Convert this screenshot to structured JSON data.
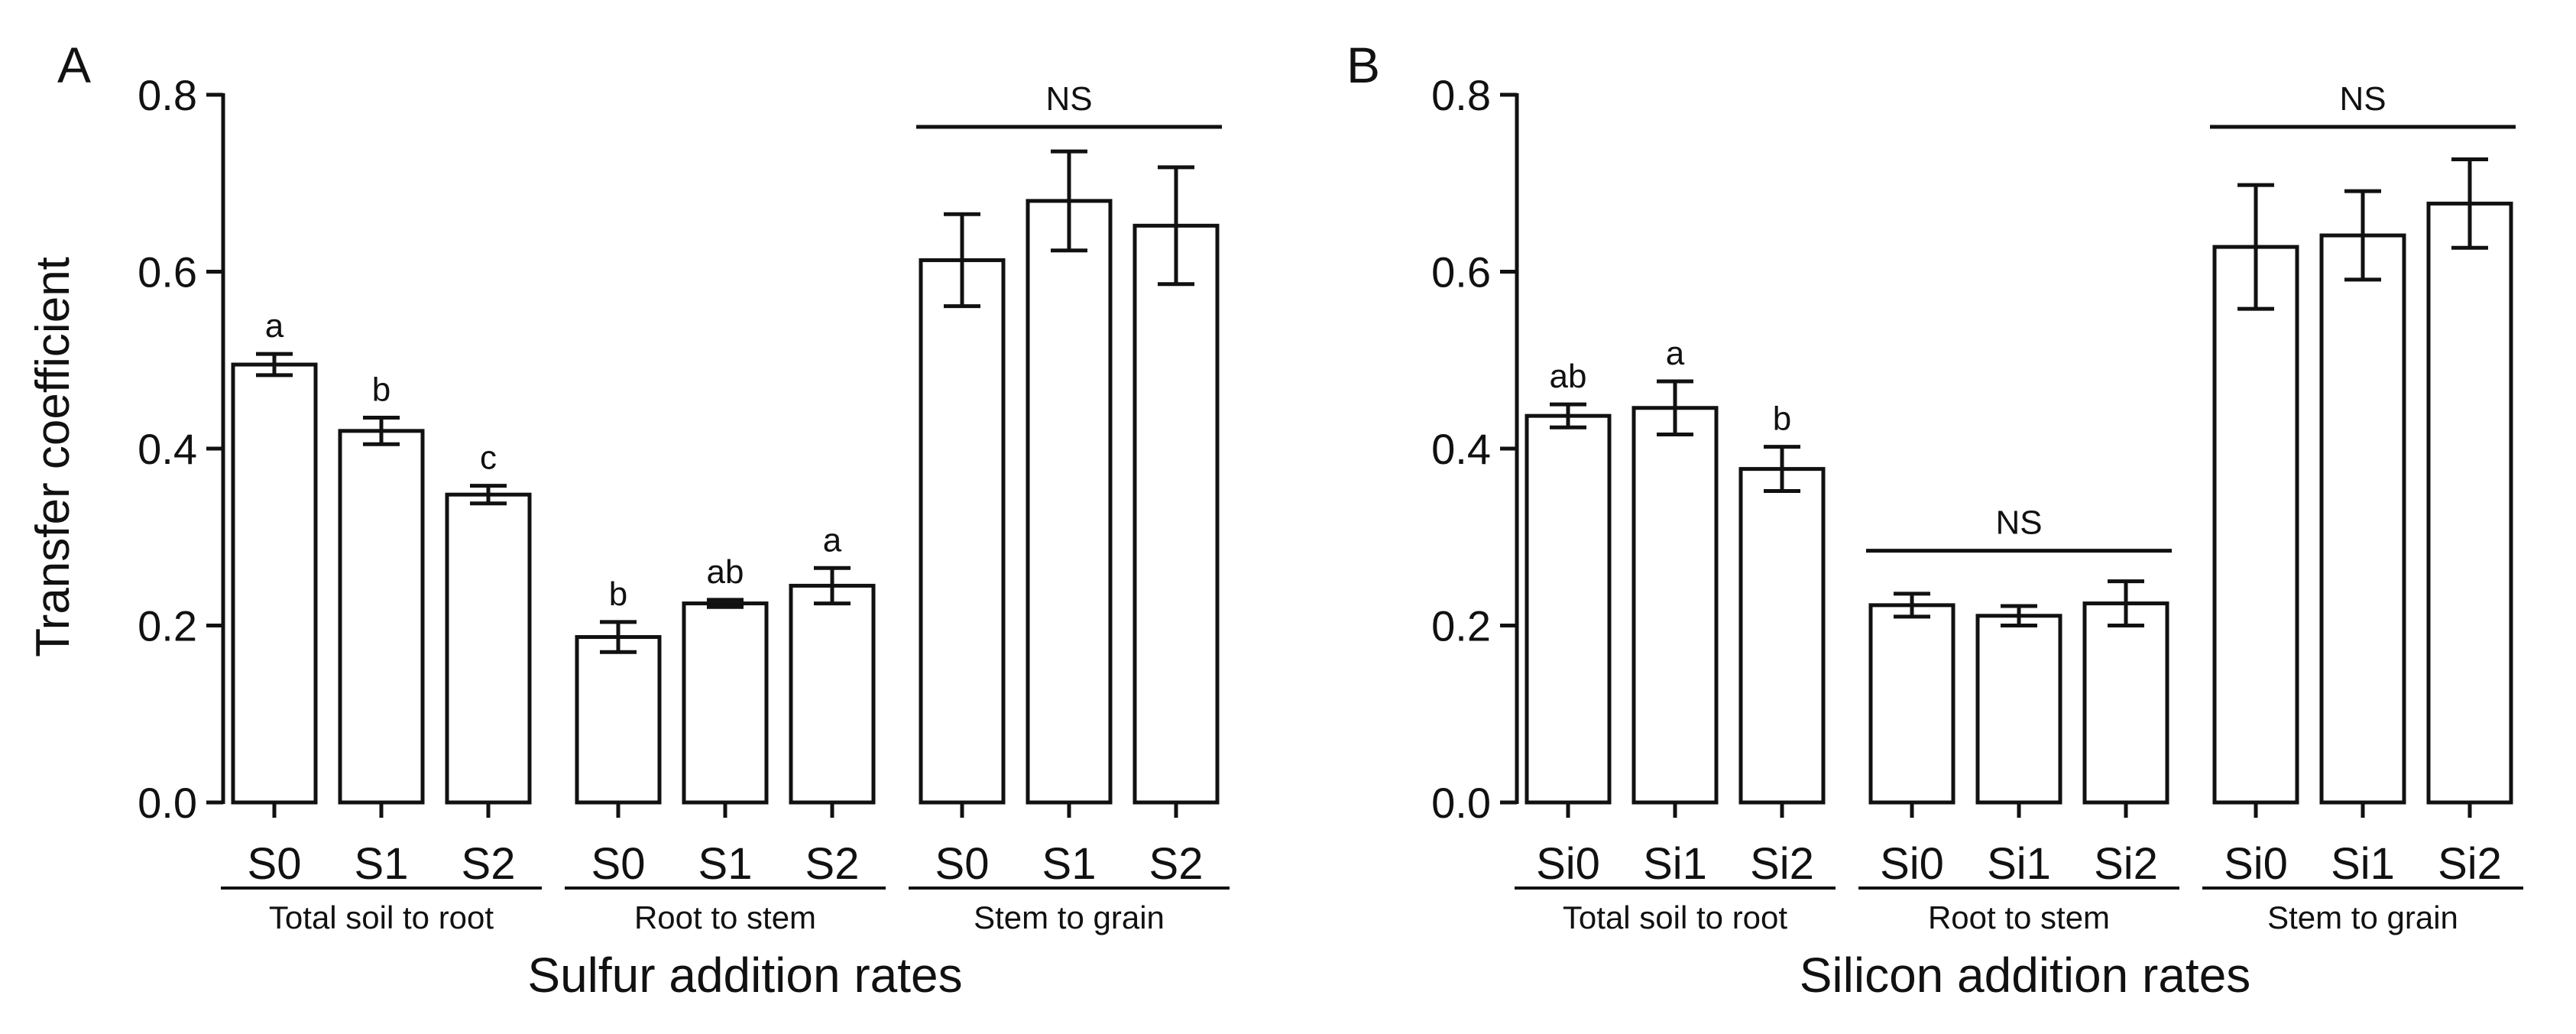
{
  "chart_data": [
    {
      "type": "bar",
      "panel_label": "A",
      "ylabel": "Transfer coefficient",
      "xlabel": "Sulfur addition rates",
      "ylim": [
        0,
        0.8
      ],
      "yticks": [
        0.0,
        0.2,
        0.4,
        0.6,
        0.8
      ],
      "ytick_labels": [
        "0.0",
        "0.2",
        "0.4",
        "0.6",
        "0.8"
      ],
      "groups": [
        {
          "label": "Total soil to root",
          "categories": [
            "S0",
            "S1",
            "S2"
          ],
          "values": [
            0.495,
            0.42,
            0.348
          ],
          "errors": [
            0.012,
            0.015,
            0.01
          ],
          "letters": [
            "a",
            "b",
            "c"
          ],
          "annotation": ""
        },
        {
          "label": "Root to stem",
          "categories": [
            "S0",
            "S1",
            "S2"
          ],
          "values": [
            0.187,
            0.225,
            0.245
          ],
          "errors": [
            0.017,
            0.004,
            0.02
          ],
          "letters": [
            "b",
            "ab",
            "a"
          ],
          "annotation": ""
        },
        {
          "label": "Stem to grain",
          "categories": [
            "S0",
            "S1",
            "S2"
          ],
          "values": [
            0.613,
            0.68,
            0.652
          ],
          "errors": [
            0.052,
            0.056,
            0.066
          ],
          "letters": [
            "",
            "",
            ""
          ],
          "annotation": "NS"
        }
      ]
    },
    {
      "type": "bar",
      "panel_label": "B",
      "ylabel": "",
      "xlabel": "Silicon addition rates",
      "ylim": [
        0,
        0.8
      ],
      "yticks": [
        0.0,
        0.2,
        0.4,
        0.6,
        0.8
      ],
      "ytick_labels": [
        "0.0",
        "0.2",
        "0.4",
        "0.6",
        "0.8"
      ],
      "groups": [
        {
          "label": "Total soil to root",
          "categories": [
            "Si0",
            "Si1",
            "Si2"
          ],
          "values": [
            0.437,
            0.446,
            0.377
          ],
          "errors": [
            0.013,
            0.03,
            0.025
          ],
          "letters": [
            "ab",
            "a",
            "b"
          ],
          "annotation": ""
        },
        {
          "label": "Root to stem",
          "categories": [
            "Si0",
            "Si1",
            "Si2"
          ],
          "values": [
            0.223,
            0.211,
            0.225
          ],
          "errors": [
            0.013,
            0.011,
            0.025
          ],
          "letters": [
            "",
            "",
            ""
          ],
          "annotation": "NS"
        },
        {
          "label": "Stem to grain",
          "categories": [
            "Si0",
            "Si1",
            "Si2"
          ],
          "values": [
            0.628,
            0.641,
            0.677
          ],
          "errors": [
            0.07,
            0.05,
            0.05
          ],
          "letters": [
            "",
            "",
            ""
          ],
          "annotation": "NS"
        }
      ]
    }
  ]
}
